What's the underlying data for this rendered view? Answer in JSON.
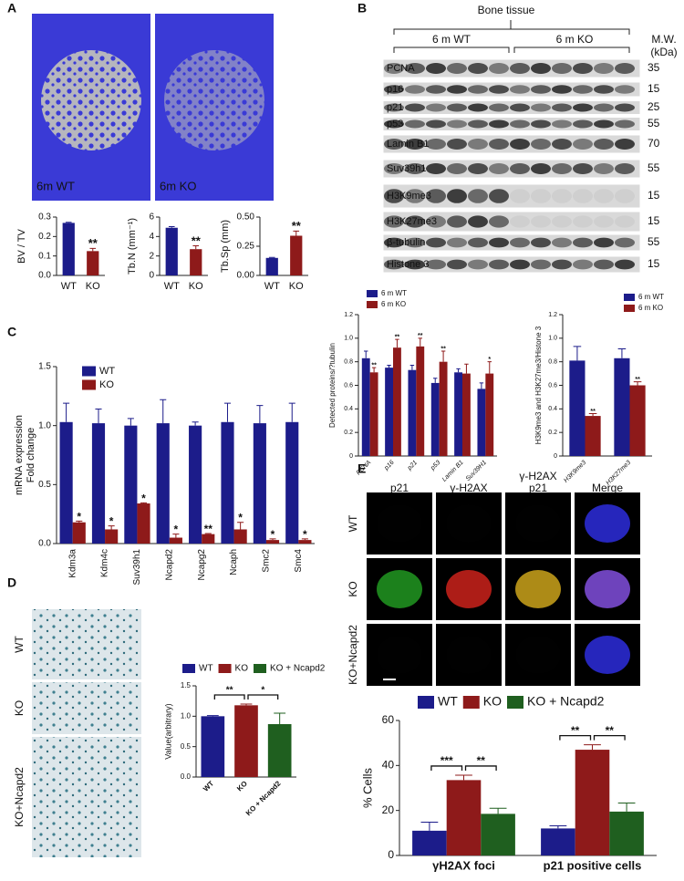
{
  "panels": [
    "A",
    "B",
    "C",
    "D",
    "E"
  ],
  "panel_a_images": {
    "labels": [
      "6m WT",
      "6m KO"
    ]
  },
  "blot": {
    "title": "Bone tissue",
    "groups": [
      "6 m WT",
      "6 m KO"
    ],
    "mw_header": [
      "M.W.",
      "(kDa)"
    ],
    "rows": [
      {
        "label": "PCNA",
        "mw": 35
      },
      {
        "label": "p16",
        "mw": 15
      },
      {
        "label": "p21",
        "mw": 25
      },
      {
        "label": "p53",
        "mw": 55
      },
      {
        "label": "Lamin B1",
        "mw": 70
      },
      {
        "label": "Suv39h1",
        "mw": 55
      },
      {
        "label": "H3K9me3",
        "mw": 15
      },
      {
        "label": "H3K27me3",
        "mw": 15
      },
      {
        "label": "β-tubulin",
        "mw": 55
      },
      {
        "label": "Histone 3",
        "mw": 15
      }
    ]
  },
  "panel_d_images": {
    "rows": [
      "WT",
      "KO",
      "KO+Ncapd2"
    ]
  },
  "panel_e_images": {
    "columns": [
      [
        "p21"
      ],
      [
        "γ-H2AX"
      ],
      [
        "γ-H2AX",
        "p21"
      ],
      [
        "Merge"
      ]
    ],
    "rows": [
      "WT",
      "KO",
      "KO+Ncapd2"
    ]
  },
  "chart_data": [
    {
      "type": "bar",
      "ylabel": "BV / TV",
      "categories": [
        "WT",
        "KO"
      ],
      "values": [
        0.27,
        0.125
      ],
      "errors": [
        0.003,
        0.014
      ],
      "colors": [
        "#1c1c8a",
        "#8e1a1a"
      ],
      "stars": [
        null,
        "**"
      ],
      "ylim": [
        0,
        0.3
      ],
      "yticks": [
        {
          "value": 0,
          "label": "0.0"
        },
        0.1,
        0.2,
        0.3
      ]
    },
    {
      "type": "bar",
      "ylabel": "Tb.N (mm⁻¹)",
      "categories": [
        "WT",
        "KO"
      ],
      "values": [
        4.9,
        2.7
      ],
      "errors": [
        0.12,
        0.35
      ],
      "colors": [
        "#1c1c8a",
        "#8e1a1a"
      ],
      "stars": [
        null,
        "**"
      ],
      "ylim": [
        0,
        6
      ],
      "yticks": [
        0,
        2,
        4,
        6
      ]
    },
    {
      "type": "bar",
      "ylabel": "Tb.Sp (mm)",
      "categories": [
        "WT",
        "KO"
      ],
      "values": [
        0.15,
        0.34
      ],
      "errors": [
        0.004,
        0.04
      ],
      "colors": [
        "#1c1c8a",
        "#8e1a1a"
      ],
      "stars": [
        null,
        "**"
      ],
      "ylim": [
        0,
        0.5
      ],
      "yticks": [
        {
          "value": 0,
          "label": "0.00"
        },
        0.25,
        {
          "value": 0.5,
          "label": "0.50"
        }
      ]
    },
    {
      "type": "bar",
      "ylabel": "Detected proteins/?tubulin",
      "categories": [
        "PCNA",
        "p16",
        "p21",
        "p53",
        "Lamin B1",
        "Suv39H1"
      ],
      "series": [
        {
          "name": "6 m WT",
          "color": "#1c1c8a",
          "values": [
            0.83,
            0.75,
            0.73,
            0.62,
            0.71,
            0.57
          ],
          "errors": [
            0.06,
            0.02,
            0.04,
            0.04,
            0.03,
            0.05
          ]
        },
        {
          "name": "6 m KO",
          "color": "#8e1a1a",
          "values": [
            0.71,
            0.92,
            0.93,
            0.8,
            0.7,
            0.7
          ],
          "errors": [
            0.04,
            0.07,
            0.07,
            0.09,
            0.08,
            0.1
          ],
          "stars": [
            "**",
            "**",
            "**",
            "**",
            null,
            "*"
          ]
        }
      ],
      "ylim": [
        0,
        1.2
      ],
      "yticks": [
        0,
        0.2,
        0.4,
        0.6,
        0.8,
        {
          "value": 1,
          "label": "1.0"
        },
        1.2
      ]
    },
    {
      "type": "bar",
      "ylabel": "H3K9me3 and H3K27me3/Histone 3",
      "categories": [
        "H3K9me3",
        "H3K27me3"
      ],
      "series": [
        {
          "name": "6 m WT",
          "color": "#1c1c8a",
          "values": [
            0.81,
            0.83
          ],
          "errors": [
            0.12,
            0.08
          ]
        },
        {
          "name": "6 m KO",
          "color": "#8e1a1a",
          "values": [
            0.34,
            0.6
          ],
          "errors": [
            0.02,
            0.03
          ],
          "stars": [
            "**",
            "**"
          ]
        }
      ],
      "ylim": [
        0,
        1.2
      ],
      "yticks": [
        0,
        0.2,
        0.4,
        0.6,
        0.8,
        {
          "value": 1,
          "label": "1.0"
        },
        1.2
      ]
    },
    {
      "type": "bar",
      "ylabel": [
        "mRNA expression",
        "Fold change"
      ],
      "categories": [
        "Kdm3a",
        "Kdm4c",
        "Suv39h1",
        "Ncapd2",
        "Ncapg2",
        "Ncaph",
        "Smc2",
        "Smc4"
      ],
      "series": [
        {
          "name": "WT",
          "color": "#1c1c8a",
          "values": [
            1.03,
            1.02,
            1.0,
            1.02,
            1.0,
            1.03,
            1.02,
            1.03
          ],
          "errors": [
            0.16,
            0.12,
            0.06,
            0.2,
            0.03,
            0.16,
            0.15,
            0.16
          ]
        },
        {
          "name": "KO",
          "color": "#8e1a1a",
          "values": [
            0.18,
            0.12,
            0.34,
            0.05,
            0.08,
            0.12,
            0.03,
            0.03
          ],
          "errors": [
            0.01,
            0.03,
            0.005,
            0.03,
            0.005,
            0.06,
            0.01,
            0.01
          ],
          "stars": [
            "*",
            "*",
            "*",
            "*",
            "**",
            "*",
            "*",
            "*"
          ]
        }
      ],
      "ylim": [
        0,
        1.5
      ],
      "yticks": [
        {
          "value": 0,
          "label": "0.0"
        },
        0.5,
        {
          "value": 1,
          "label": "1.0"
        },
        1.5
      ]
    },
    {
      "type": "bar",
      "ylabel": "Value(arbitrary)",
      "categories": [
        "WT",
        "KO",
        "KO + Ncapd2"
      ],
      "values": [
        1.0,
        1.18,
        0.87
      ],
      "errors": [
        0.01,
        0.02,
        0.18
      ],
      "colors": [
        "#1c1c8a",
        "#8e1a1a",
        "#1f5f1f"
      ],
      "legend": [
        "WT",
        "KO",
        "KO + Ncapd2"
      ],
      "brackets": [
        "**",
        "*"
      ],
      "ylim": [
        0,
        1.5
      ],
      "yticks": [
        {
          "value": 0,
          "label": "0.0"
        },
        0.5,
        {
          "value": 1,
          "label": "1.0"
        },
        1.5
      ]
    },
    {
      "type": "bar",
      "ylabel": "% Cells",
      "categories": [
        "γH2AX foci",
        "p21 positive cells"
      ],
      "series": [
        {
          "name": "WT",
          "color": "#1c1c8a",
          "values": [
            11,
            12
          ],
          "errors": [
            3.8,
            1.2
          ]
        },
        {
          "name": "KO",
          "color": "#8e1a1a",
          "values": [
            33.5,
            47
          ],
          "errors": [
            2.2,
            2.2
          ]
        },
        {
          "name": "KO + Ncapd2",
          "color": "#1f5f1f",
          "values": [
            18.5,
            19.5
          ],
          "errors": [
            2.5,
            3.8
          ]
        }
      ],
      "brackets": [
        [
          "***",
          "**"
        ],
        [
          "**",
          "**"
        ]
      ],
      "ylim": [
        0,
        60
      ],
      "yticks": [
        0,
        20,
        40,
        60
      ]
    }
  ]
}
